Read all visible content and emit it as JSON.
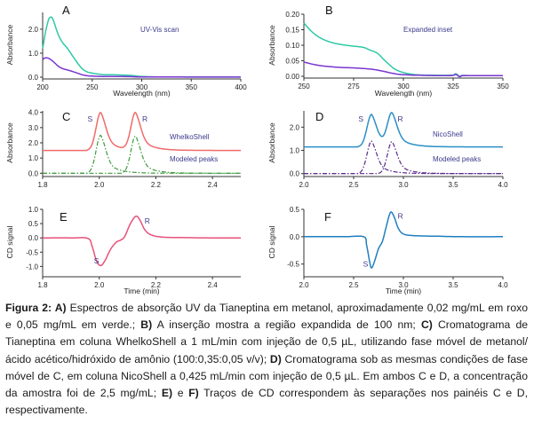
{
  "chart_data": [
    {
      "id": "A",
      "type": "line",
      "panel_letter": "A",
      "annotation": "UV-Vis scan",
      "xlabel": "Wavelength (nm)",
      "ylabel": "Absorbance",
      "xlim": [
        200,
        400
      ],
      "ylim": [
        0,
        2.7
      ],
      "xticks": [
        200,
        250,
        300,
        350,
        400
      ],
      "xtick_labels": [
        "200",
        "250",
        "300",
        "350",
        "400"
      ],
      "yticks": [
        0,
        1,
        2
      ],
      "ytick_labels": [
        "0.0",
        "1.0",
        "2.0"
      ],
      "grid": false,
      "series": [
        {
          "name": "0,05 mg/mL (verde)",
          "color": "#2ec9a6",
          "style": "solid",
          "x": [
            200,
            203,
            206,
            208,
            210,
            213,
            216,
            220,
            225,
            230,
            235,
            240,
            245,
            250,
            260,
            270,
            280,
            290,
            300,
            320,
            350,
            400
          ],
          "y": [
            1.2,
            1.9,
            2.4,
            2.5,
            2.45,
            2.1,
            1.75,
            1.45,
            1.2,
            0.9,
            0.6,
            0.35,
            0.22,
            0.17,
            0.11,
            0.1,
            0.09,
            0.07,
            0.03,
            0.01,
            0.01,
            0.01
          ]
        },
        {
          "name": "0,02 mg/mL (roxo)",
          "color": "#7a35d0",
          "style": "solid",
          "x": [
            200,
            202,
            205,
            208,
            212,
            216,
            220,
            225,
            230,
            235,
            240,
            245,
            250,
            260,
            270,
            280,
            290,
            300,
            350,
            400
          ],
          "y": [
            0.72,
            0.8,
            0.8,
            0.74,
            0.6,
            0.45,
            0.36,
            0.3,
            0.24,
            0.17,
            0.1,
            0.06,
            0.045,
            0.03,
            0.028,
            0.025,
            0.02,
            0.01,
            0.005,
            0.005
          ]
        }
      ]
    },
    {
      "id": "B",
      "type": "line",
      "panel_letter": "B",
      "annotation": "Expanded inset",
      "xlabel": "Wavelength (nm)",
      "ylabel": "Absorbance",
      "xlim": [
        250,
        350
      ],
      "ylim": [
        0,
        0.2
      ],
      "xticks": [
        250,
        275,
        300,
        325,
        350
      ],
      "xtick_labels": [
        "250",
        "275",
        "300",
        "325",
        "350"
      ],
      "yticks": [
        0,
        0.05,
        0.1,
        0.15,
        0.2
      ],
      "ytick_labels": [
        "0.00",
        "0.05",
        "0.10",
        "0.15",
        "0.20"
      ],
      "grid": false,
      "series": [
        {
          "name": "0,05 mg/mL (verde)",
          "color": "#2ec9a6",
          "style": "solid",
          "x": [
            250,
            253,
            256,
            260,
            265,
            270,
            275,
            280,
            283,
            287,
            290,
            293,
            296,
            300,
            305,
            310,
            320,
            325,
            326,
            327,
            328,
            329,
            330,
            335,
            340,
            350
          ],
          "y": [
            0.172,
            0.15,
            0.133,
            0.118,
            0.107,
            0.101,
            0.097,
            0.093,
            0.085,
            0.074,
            0.055,
            0.037,
            0.022,
            0.012,
            0.006,
            0.004,
            0.003,
            0.004,
            0.008,
            0.006,
            0.0,
            0.002,
            0.003,
            0.002,
            0.002,
            0.002
          ]
        },
        {
          "name": "0,02 mg/mL (roxo)",
          "color": "#7a35d0",
          "style": "solid",
          "x": [
            250,
            255,
            260,
            265,
            270,
            275,
            280,
            285,
            290,
            295,
            300,
            310,
            320,
            325,
            326,
            327,
            328,
            329,
            330,
            340,
            350
          ],
          "y": [
            0.046,
            0.038,
            0.033,
            0.03,
            0.028,
            0.027,
            0.025,
            0.022,
            0.016,
            0.009,
            0.005,
            0.003,
            0.002,
            0.003,
            0.006,
            0.004,
            -0.001,
            0.0,
            0.002,
            0.002,
            0.002
          ]
        }
      ]
    },
    {
      "id": "C",
      "type": "line",
      "panel_letter": "C",
      "annotations": [
        "WhelkoShell",
        "Modeled peaks"
      ],
      "peak_labels": [
        {
          "text": "S",
          "x": 2.005
        },
        {
          "text": "R",
          "x": 2.13
        }
      ],
      "xlabel": "",
      "ylabel": "Absorbance",
      "xlim": [
        1.8,
        2.5
      ],
      "ylim": [
        -0.1,
        4.1
      ],
      "xticks": [
        1.8,
        2.0,
        2.2,
        2.4
      ],
      "xtick_labels": [
        "1.8",
        "2.0",
        "2.2",
        "2.4"
      ],
      "yticks": [
        0,
        1,
        2,
        3,
        4
      ],
      "ytick_labels": [
        "0.0",
        "1.0",
        "2.0",
        "3.0",
        "4.0"
      ],
      "grid": false,
      "peaks": [
        {
          "center": 2.005,
          "height": 2.5
        },
        {
          "center": 2.128,
          "height": 2.45
        }
      ],
      "baseline": 1.5,
      "series": [
        {
          "name": "WhelkoShell",
          "color": "#ef6b6b",
          "style": "solid",
          "model": "sum_peaks_plus_baseline"
        },
        {
          "name": "Modeled peak S",
          "color": "#3f9a3f",
          "style": "dashdot",
          "model": "peak_0"
        },
        {
          "name": "Modeled peak R",
          "color": "#3f9a3f",
          "style": "dashdot",
          "model": "peak_1"
        }
      ]
    },
    {
      "id": "D",
      "type": "line",
      "panel_letter": "D",
      "annotations": [
        "NicoShell",
        "Modeled peaks"
      ],
      "peak_labels": [
        {
          "text": "S",
          "x": 2.68
        },
        {
          "text": "R",
          "x": 2.88
        }
      ],
      "xlabel": "",
      "ylabel": "Absorbance",
      "xlim": [
        2.0,
        4.0
      ],
      "ylim": [
        -0.05,
        2.7
      ],
      "xticks": [
        2.0,
        2.5,
        3.0,
        3.5,
        4.0
      ],
      "xtick_labels": [
        "2.0",
        "2.5",
        "3.0",
        "3.5",
        "4.0"
      ],
      "yticks": [
        0,
        1,
        2
      ],
      "ytick_labels": [
        "0.0",
        "1.0",
        "2.0"
      ],
      "grid": false,
      "peaks": [
        {
          "center": 2.68,
          "height": 1.4
        },
        {
          "center": 2.885,
          "height": 1.38
        }
      ],
      "baseline": 1.15,
      "series": [
        {
          "name": "NicoShell",
          "color": "#2a8fc6",
          "style": "solid",
          "model": "sum_peaks_plus_baseline"
        },
        {
          "name": "Modeled peak S",
          "color": "#5a2a8a",
          "style": "dashdot",
          "model": "peak_0"
        },
        {
          "name": "Modeled peak R",
          "color": "#5a2a8a",
          "style": "dashdot",
          "model": "peak_1"
        }
      ]
    },
    {
      "id": "E",
      "type": "line",
      "panel_letter": "E",
      "peak_labels": [
        {
          "text": "S",
          "x": 1.99,
          "y": -0.8
        },
        {
          "text": "R",
          "x": 2.17,
          "y": 0.6
        }
      ],
      "xlabel": "Time (min)",
      "ylabel": "CD signal",
      "xlim": [
        1.8,
        2.5
      ],
      "ylim": [
        -1.3,
        1.0
      ],
      "xticks": [
        1.8,
        2.0,
        2.2,
        2.4
      ],
      "xtick_labels": [
        "1.8",
        "2.0",
        "2.2",
        "2.4"
      ],
      "yticks": [
        -1.0,
        -0.5,
        0.0,
        0.5,
        1.0
      ],
      "ytick_labels": [
        "-1.0",
        "-0.5",
        "0.0",
        "0.5",
        "1.0"
      ],
      "grid": false,
      "series": [
        {
          "name": "CD WhelkoShell",
          "color": "#e8517a",
          "style": "solid",
          "x": [
            1.8,
            1.9,
            1.96,
            1.975,
            1.99,
            2.005,
            2.02,
            2.04,
            2.06,
            2.075,
            2.09,
            2.11,
            2.13,
            2.145,
            2.16,
            2.18,
            2.22,
            2.3,
            2.4,
            2.5
          ],
          "y": [
            0.0,
            0.0,
            -0.02,
            -0.3,
            -0.8,
            -0.97,
            -0.8,
            -0.4,
            -0.15,
            -0.08,
            0.05,
            0.5,
            0.76,
            0.6,
            0.3,
            0.12,
            0.03,
            0.01,
            0.0,
            0.0
          ]
        }
      ]
    },
    {
      "id": "F",
      "type": "line",
      "panel_letter": "F",
      "peak_labels": [
        {
          "text": "S",
          "x": 2.62,
          "y": -0.5
        },
        {
          "text": "R",
          "x": 2.97,
          "y": 0.38
        }
      ],
      "xlabel": "Time (min)",
      "ylabel": "CD signal",
      "xlim": [
        2.0,
        4.0
      ],
      "ylim": [
        -0.7,
        0.5
      ],
      "xticks": [
        2.0,
        2.5,
        3.0,
        3.5,
        4.0
      ],
      "xtick_labels": [
        "2.0",
        "2.5",
        "3.0",
        "3.5",
        "4.0"
      ],
      "yticks": [
        -0.5,
        0.0,
        0.5
      ],
      "ytick_labels": [
        "-0.5",
        "0.0",
        "0.5"
      ],
      "grid": false,
      "series": [
        {
          "name": "CD NicoShell",
          "color": "#1f7ec0",
          "style": "solid",
          "x": [
            2.0,
            2.4,
            2.6,
            2.63,
            2.66,
            2.68,
            2.71,
            2.75,
            2.79,
            2.83,
            2.86,
            2.88,
            2.91,
            2.95,
            3.0,
            3.1,
            3.3,
            3.6,
            4.0
          ],
          "y": [
            0.0,
            0.0,
            0.0,
            -0.15,
            -0.45,
            -0.57,
            -0.45,
            -0.22,
            -0.08,
            0.2,
            0.4,
            0.45,
            0.35,
            0.15,
            0.05,
            0.02,
            0.01,
            0.0,
            0.0
          ]
        }
      ]
    }
  ],
  "caption": {
    "segments": [
      {
        "text": "Figura 2: A)",
        "bold": true
      },
      {
        "text": " Espectros de absorção UV da Tianeptina em metanol, aproximadamente 0,02 mg/mL em roxo e 0,05 mg/mL em verde.; ",
        "bold": false
      },
      {
        "text": "B)",
        "bold": true
      },
      {
        "text": " A inserção mostra a região expandida de 100 nm; ",
        "bold": false
      },
      {
        "text": "C)",
        "bold": true
      },
      {
        "text": " Cromatograma de Tianeptina em coluna WhelkoShell a 1 mL/min com injeção de 0,5 µL, utilizando fase móvel de metanol/ácido acético/hidróxido de amônio (100:0,35:0,05 v/v); ",
        "bold": false
      },
      {
        "text": "D)",
        "bold": true
      },
      {
        "text": " Cromatograma sob as mesmas condições de fase móvel de C, em coluna NicoShell a 0,425 mL/min com injeção de 0,5 µL. Em ambos C e D, a concentração da amostra foi de 2,5 mg/mL; ",
        "bold": false
      },
      {
        "text": "E)",
        "bold": true
      },
      {
        "text": " e ",
        "bold": false
      },
      {
        "text": "F)",
        "bold": true
      },
      {
        "text": " Traços de CD correspondem às separações nos painéis C e D, respectivamente.",
        "bold": false
      }
    ]
  }
}
